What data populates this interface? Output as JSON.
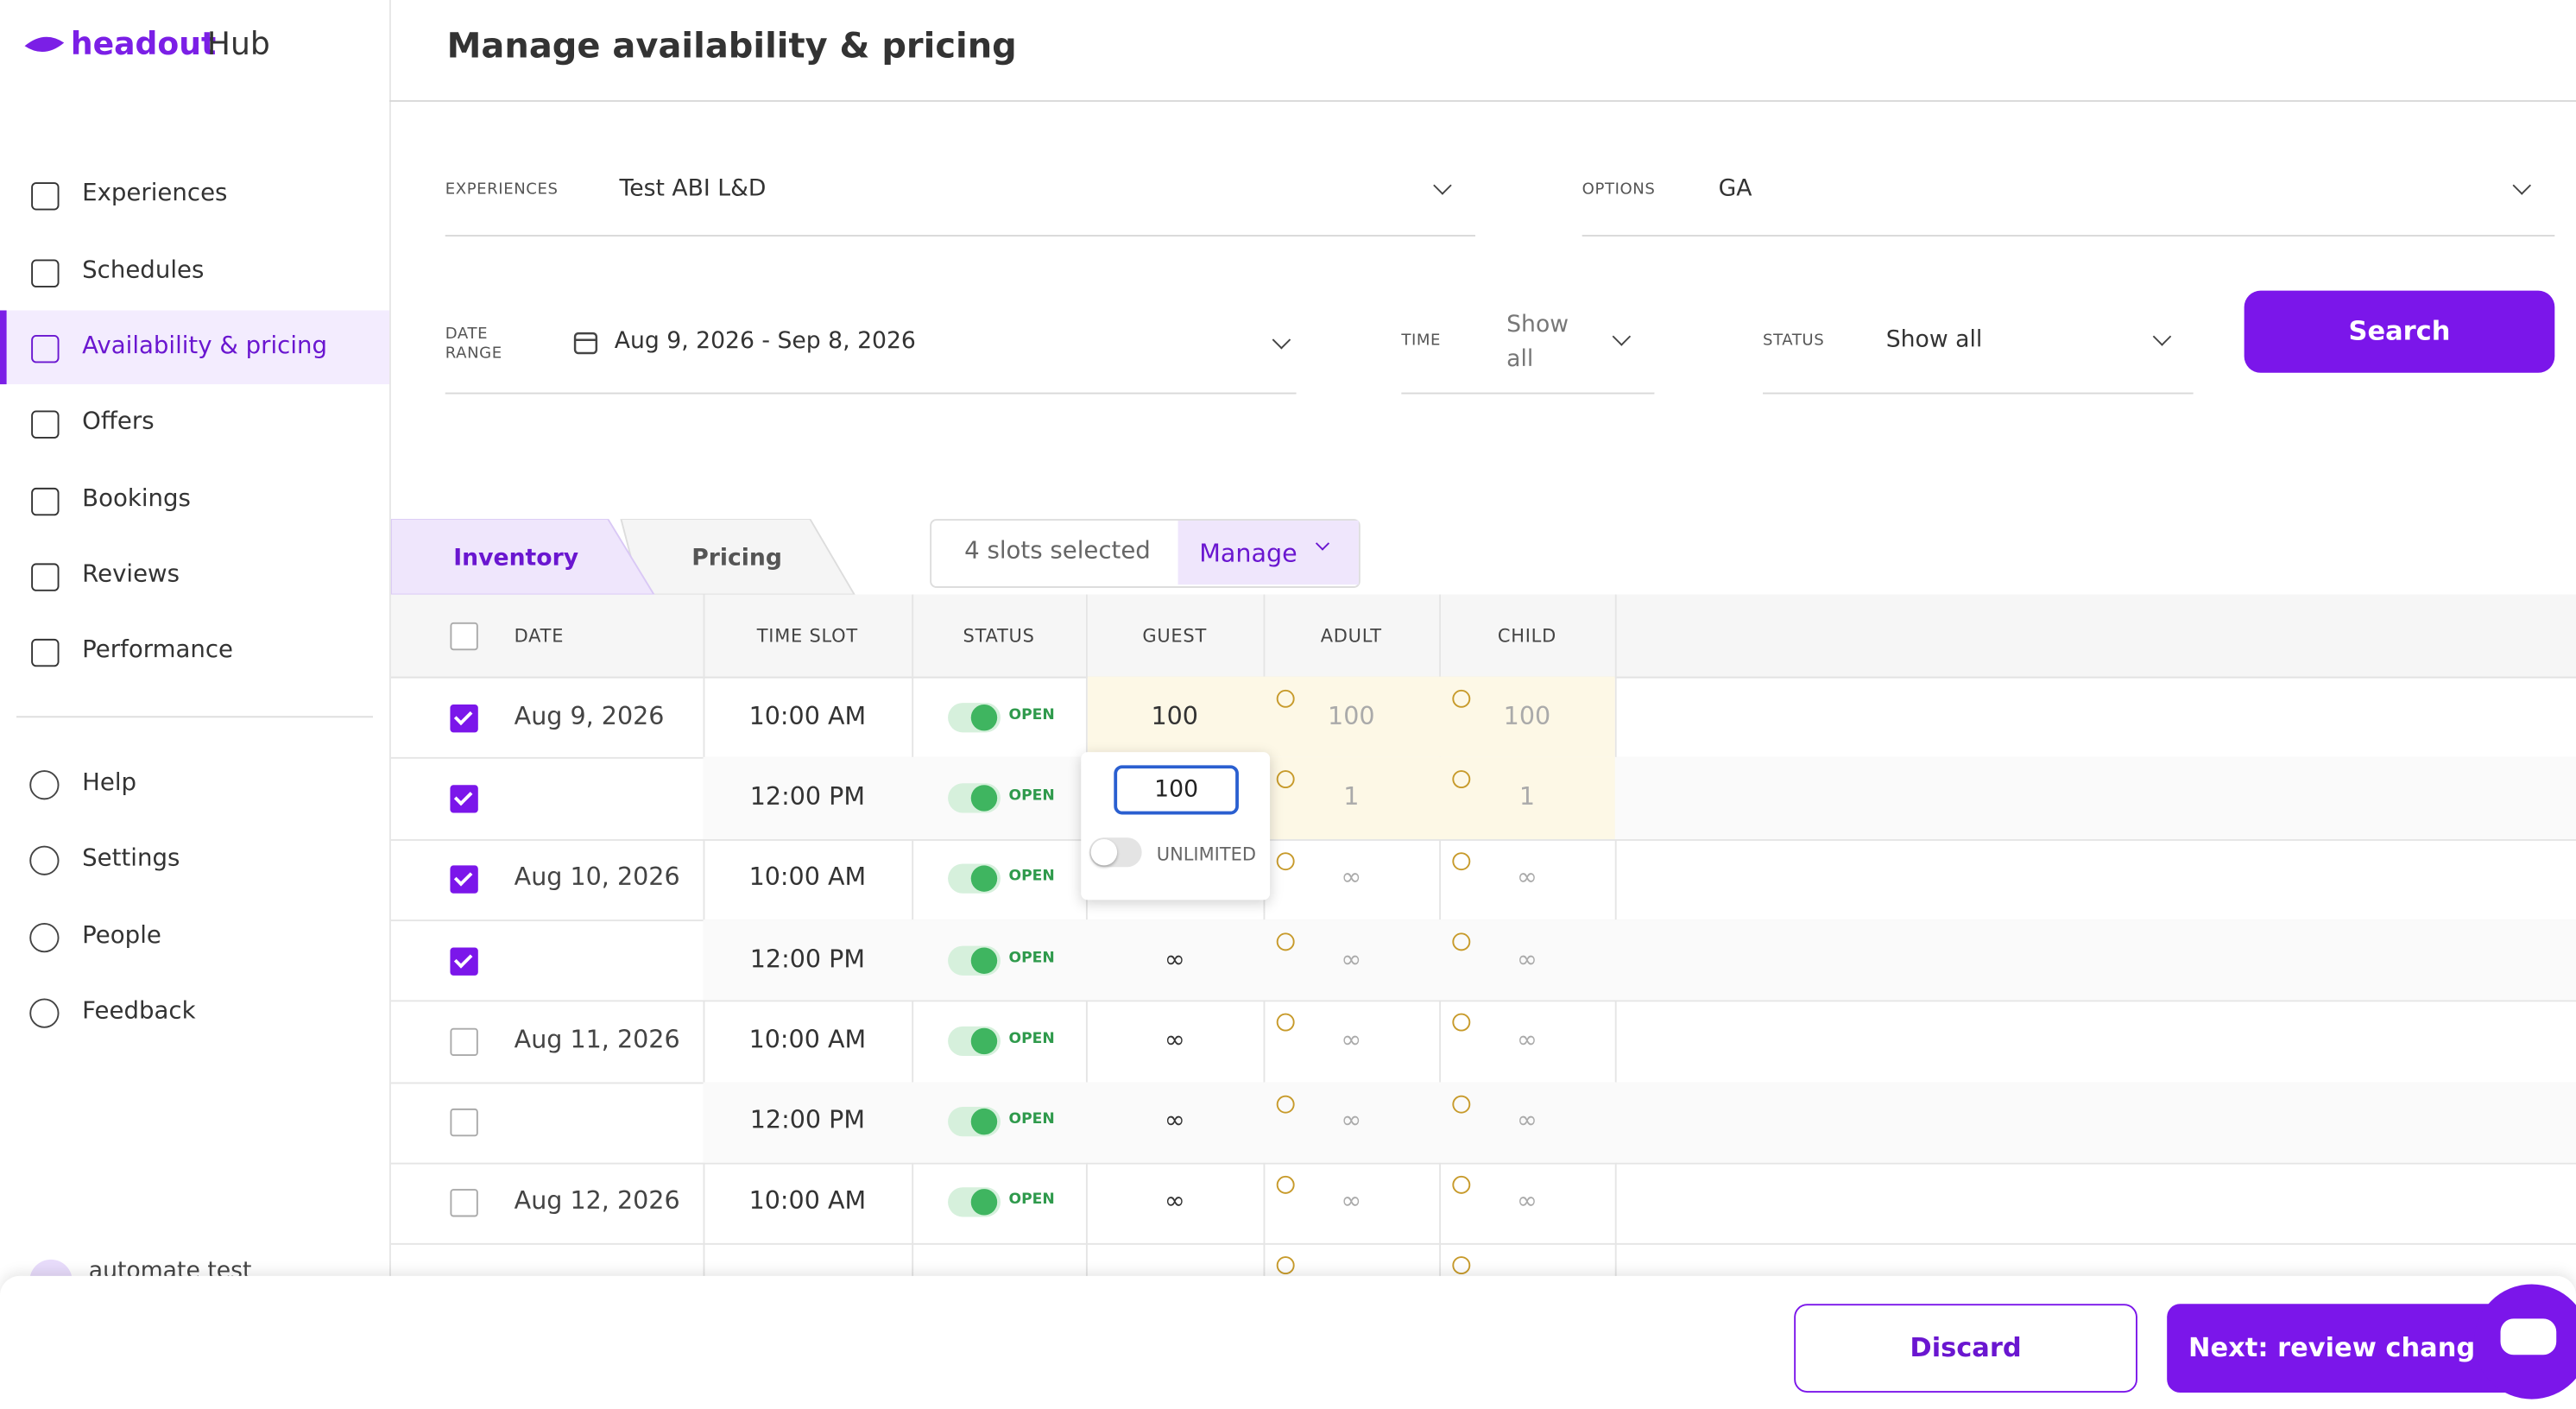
{
  "brand": {
    "name": "headout",
    "suffix": "Hub"
  },
  "page_title": "Manage availability & pricing",
  "nav": [
    "Experiences",
    "Schedules",
    "Availability & pricing",
    "Offers",
    "Bookings",
    "Reviews",
    "Performance"
  ],
  "nav_active": 2,
  "nav_secondary": [
    "Help",
    "Settings",
    "People",
    "Feedback"
  ],
  "user": "automate test",
  "filters": {
    "experiences": {
      "label": "EXPERIENCES",
      "value": "Test ABI L&D"
    },
    "options": {
      "label": "OPTIONS",
      "value": "GA"
    },
    "date_range": {
      "label": "DATE RANGE",
      "value": "Aug 9, 2026 - Sep 8, 2026"
    },
    "time": {
      "label": "TIME",
      "value": "Show all"
    },
    "status": {
      "label": "STATUS",
      "value": "Show all"
    },
    "search": "Search"
  },
  "tabs": [
    "Inventory",
    "Pricing"
  ],
  "selection": {
    "text": "4 slots selected",
    "action": "Manage"
  },
  "table": {
    "headers": [
      "DATE",
      "TIME SLOT",
      "STATUS",
      "GUEST",
      "ADULT",
      "CHILD"
    ],
    "rows": [
      {
        "checked": true,
        "date": "Aug 9, 2026",
        "time": "10:00 AM",
        "status": "OPEN",
        "guest": "100",
        "adult": "100",
        "child": "100",
        "edited": true
      },
      {
        "checked": true,
        "time": "12:00 PM",
        "status": "OPEN",
        "adult": "1",
        "child": "1",
        "edited": true
      },
      {
        "checked": true,
        "date": "Aug 10, 2026",
        "time": "10:00 AM",
        "status": "OPEN",
        "adult": "∞",
        "child": "∞"
      },
      {
        "checked": true,
        "time": "12:00 PM",
        "status": "OPEN",
        "guest": "∞",
        "adult": "∞",
        "child": "∞"
      },
      {
        "checked": false,
        "date": "Aug 11, 2026",
        "time": "10:00 AM",
        "status": "OPEN",
        "guest": "∞",
        "adult": "∞",
        "child": "∞"
      },
      {
        "checked": false,
        "time": "12:00 PM",
        "status": "OPEN",
        "guest": "∞",
        "adult": "∞",
        "child": "∞"
      },
      {
        "checked": false,
        "date": "Aug 12, 2026",
        "time": "10:00 AM",
        "status": "OPEN",
        "guest": "∞",
        "adult": "∞",
        "child": "∞"
      }
    ]
  },
  "editor": {
    "value": "100",
    "toggle": "UNLIMITED"
  },
  "footer": {
    "discard": "Discard",
    "next": "Next: review changes"
  }
}
